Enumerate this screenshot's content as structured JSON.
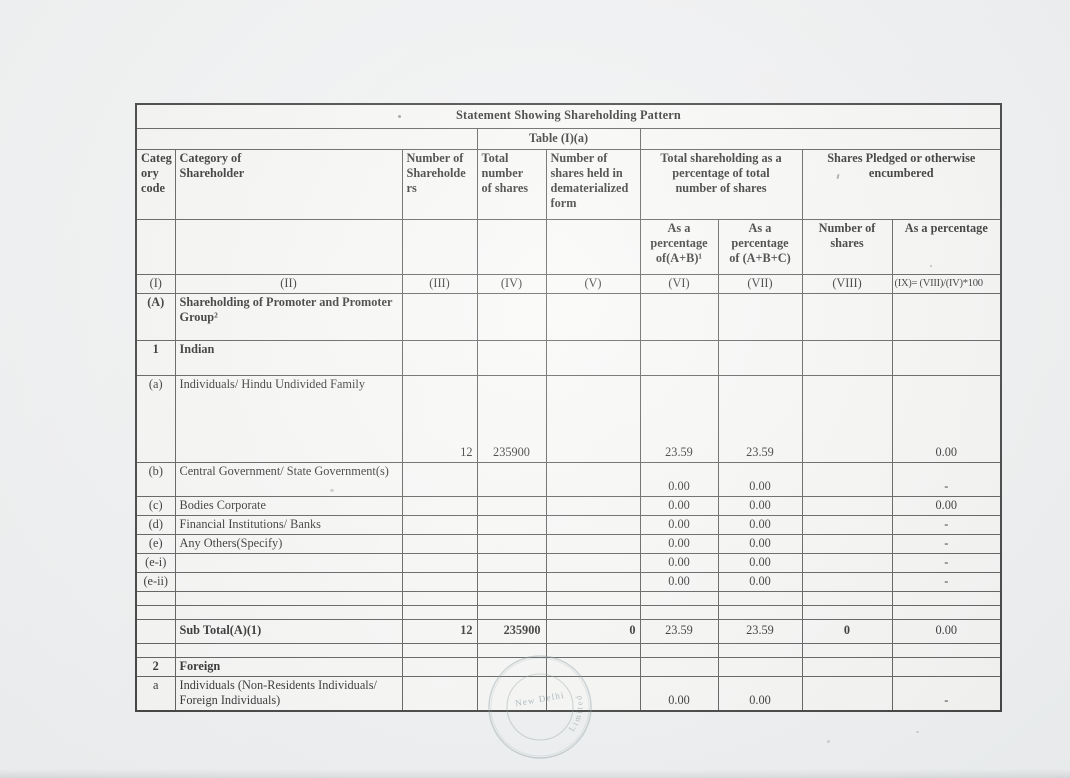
{
  "document": {
    "title": "Statement Showing Shareholding Pattern",
    "subtitle": "Table (I)(a)"
  },
  "table": {
    "header": {
      "col_code": "Categ\nory\ncode",
      "col_category": "Category of\nShareholder",
      "col_num_shareholders": "Number of\nShareholde\nrs",
      "col_total_shares": "Total\nnumber\nof shares",
      "col_demat": "Number of\nshares held in\ndematerialized\nform",
      "group_total_shareholding": "Total shareholding as a\npercentage of total\nnumber of shares",
      "group_pledged": "Shares Pledged or otherwise\nencumbered",
      "sub_pct_ab": "As a\npercentage\nof(A+B)¹",
      "sub_pct_abc": "As a\npercentage\nof (A+B+C)",
      "sub_num_shares": "Number of\nshares",
      "sub_pct": "As a percentage"
    },
    "index_row": [
      "(I)",
      "(II)",
      "(III)",
      "(IV)",
      "(V)",
      "(VI)",
      "(VII)",
      "(VIII)",
      "(IX)= (VIII)/(IV)*100"
    ],
    "rows": [
      {
        "id": "promoter-group",
        "kind": "groupA",
        "code": "(A)",
        "label": "Shareholding of Promoter and Promoter Group²",
        "n3": "",
        "n4": "",
        "n5": "",
        "n6": "",
        "n7": "",
        "n8": "",
        "n9": ""
      },
      {
        "id": "indian",
        "kind": "indian",
        "code": "1",
        "label": "Indian",
        "n3": "",
        "n4": "",
        "n5": "",
        "n6": "",
        "n7": "",
        "n8": "",
        "n9": ""
      },
      {
        "id": "individuals-huf",
        "kind": "huf",
        "code": "(a)",
        "label": "Individuals/ Hindu Undivided Family",
        "n3": "12",
        "n4": "235900",
        "n5": "",
        "n6": "23.59",
        "n7": "23.59",
        "n8": "",
        "n9": "0.00"
      },
      {
        "id": "central-govt",
        "kind": "gov",
        "code": "(b)",
        "label": "Central Government/ State Government(s)",
        "n3": "",
        "n4": "",
        "n5": "",
        "n6": "0.00",
        "n7": "0.00",
        "n8": "",
        "n9": "-"
      },
      {
        "id": "bodies-corporate",
        "kind": "thin",
        "code": "(c)",
        "label": "Bodies Corporate",
        "n3": "",
        "n4": "",
        "n5": "",
        "n6": "0.00",
        "n7": "0.00",
        "n8": "",
        "n9": "0.00"
      },
      {
        "id": "financial-institutions",
        "kind": "thin",
        "code": "(d)",
        "label": "Financial Institutions/ Banks",
        "n3": "",
        "n4": "",
        "n5": "",
        "n6": "0.00",
        "n7": "0.00",
        "n8": "",
        "n9": "-"
      },
      {
        "id": "any-others",
        "kind": "thin",
        "code": "(e)",
        "label": "Any Others(Specify)",
        "n3": "",
        "n4": "",
        "n5": "",
        "n6": "0.00",
        "n7": "0.00",
        "n8": "",
        "n9": "-"
      },
      {
        "id": "e-i",
        "kind": "thin",
        "code": "(e-i)",
        "label": "",
        "n3": "",
        "n4": "",
        "n5": "",
        "n6": "0.00",
        "n7": "0.00",
        "n8": "",
        "n9": "-"
      },
      {
        "id": "e-ii",
        "kind": "thin",
        "code": "(e-ii)",
        "label": "",
        "n3": "",
        "n4": "",
        "n5": "",
        "n6": "0.00",
        "n7": "0.00",
        "n8": "",
        "n9": "-"
      },
      {
        "id": "spacer-1",
        "kind": "empty",
        "code": "",
        "label": "",
        "n3": "",
        "n4": "",
        "n5": "",
        "n6": "",
        "n7": "",
        "n8": "",
        "n9": ""
      },
      {
        "id": "spacer-2",
        "kind": "empty",
        "code": "",
        "label": "",
        "n3": "",
        "n4": "",
        "n5": "",
        "n6": "",
        "n7": "",
        "n8": "",
        "n9": ""
      },
      {
        "id": "subtotal-a1",
        "kind": "subtotal",
        "code": "",
        "label": "Sub Total(A)(1)",
        "n3": "12",
        "n4": "235900",
        "n5": "0",
        "n6": "23.59",
        "n7": "23.59",
        "n8": "0",
        "n9": "0.00"
      },
      {
        "id": "spacer-3",
        "kind": "empty",
        "code": "",
        "label": "",
        "n3": "",
        "n4": "",
        "n5": "",
        "n6": "",
        "n7": "",
        "n8": "",
        "n9": ""
      },
      {
        "id": "foreign",
        "kind": "foreign",
        "code": "2",
        "label": "Foreign",
        "n3": "",
        "n4": "",
        "n5": "",
        "n6": "",
        "n7": "",
        "n8": "",
        "n9": ""
      },
      {
        "id": "nri-individuals",
        "kind": "nri",
        "code": "a",
        "label": "Individuals (Non-Residents Individuals/ Foreign Individuals)",
        "n3": "",
        "n4": "",
        "n5": "",
        "n6": "0.00",
        "n7": "0.00",
        "n8": "",
        "n9": "-"
      }
    ]
  },
  "stamp": {
    "line1": "New Delhi",
    "line2": "Limited"
  }
}
